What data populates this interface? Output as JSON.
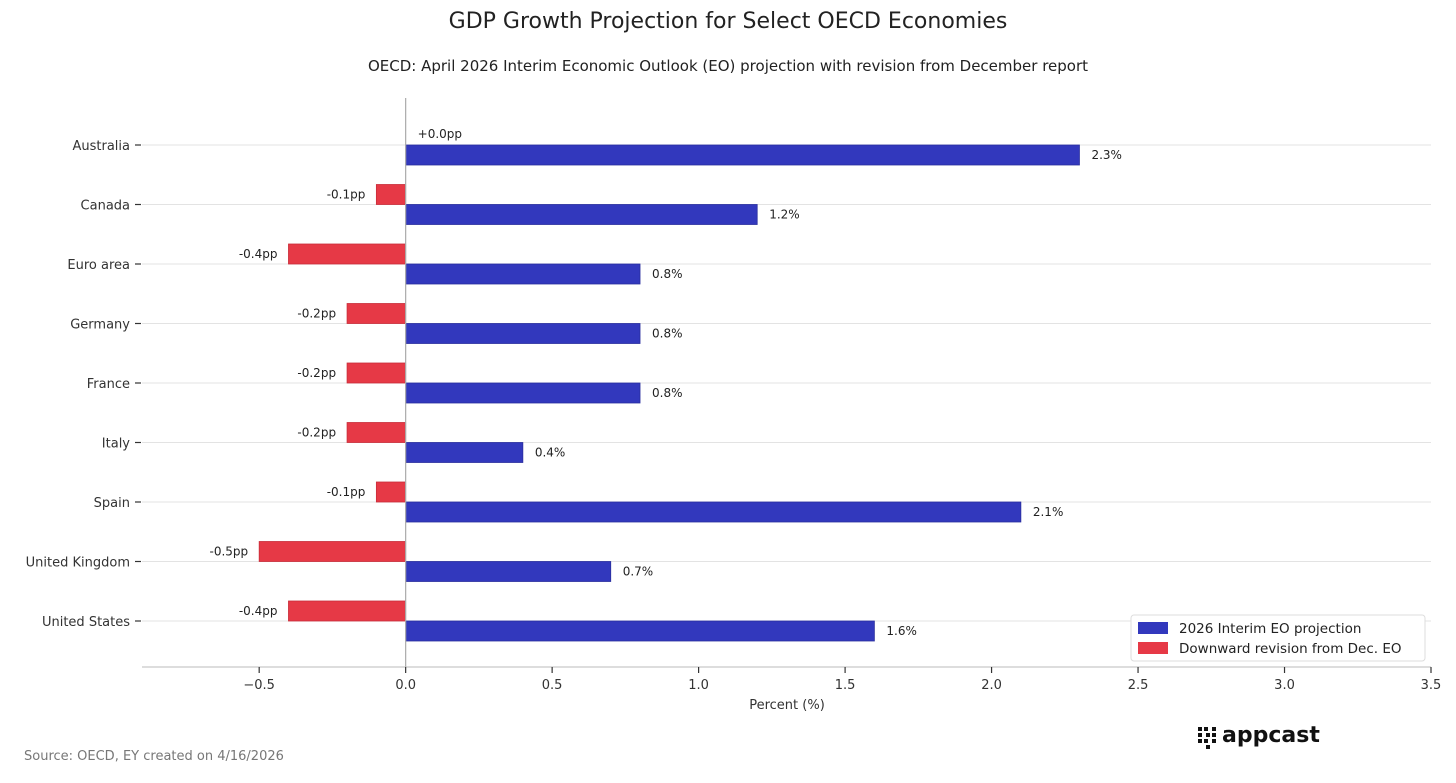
{
  "chart_data": {
    "type": "bar",
    "orientation": "horizontal",
    "title": "GDP Growth Projection for Select OECD Economies",
    "subtitle": "OECD: April 2026 Interim Economic Outlook (EO) projection with revision from December report",
    "xlabel": "Percent (%)",
    "ylabel": "",
    "xlim": [
      -0.9,
      3.5
    ],
    "xticks": [
      -0.5,
      0.0,
      0.5,
      1.0,
      1.5,
      2.0,
      2.5,
      3.0,
      3.5
    ],
    "xtick_labels": [
      "−0.5",
      "0.0",
      "0.5",
      "1.0",
      "1.5",
      "2.0",
      "2.5",
      "3.0",
      "3.5"
    ],
    "grid": "horizontal",
    "legend_position": "bottom-right",
    "categories": [
      "Australia",
      "Canada",
      "Euro area",
      "Germany",
      "France",
      "Italy",
      "Spain",
      "United Kingdom",
      "United States"
    ],
    "series": [
      {
        "name": "2026 Interim EO projection",
        "color": "#3238bd",
        "values": [
          2.3,
          1.2,
          0.8,
          0.8,
          0.8,
          0.4,
          2.1,
          0.7,
          1.6
        ],
        "labels": [
          "2.3%",
          "1.2%",
          "0.8%",
          "0.8%",
          "0.8%",
          "0.4%",
          "2.1%",
          "0.7%",
          "1.6%"
        ]
      },
      {
        "name": "Downward revision from Dec. EO",
        "color": "#e63946",
        "values": [
          0.0,
          -0.1,
          -0.4,
          -0.2,
          -0.2,
          -0.2,
          -0.1,
          -0.5,
          -0.4
        ],
        "labels": [
          "+0.0pp",
          "-0.1pp",
          "-0.4pp",
          "-0.2pp",
          "-0.2pp",
          "-0.2pp",
          "-0.1pp",
          "-0.5pp",
          "-0.4pp"
        ]
      }
    ]
  },
  "source": "Source: OECD, EY created on 4/16/2026",
  "logo": "appcast"
}
